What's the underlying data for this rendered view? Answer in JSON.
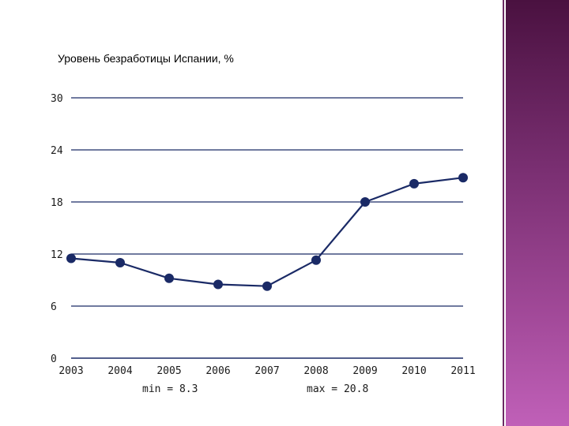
{
  "colors": {
    "line": "#1a2a66",
    "grid": "#1a2a66",
    "axis": "#1a2a66",
    "accent_bar": "#7a2f72"
  },
  "chart_data": {
    "type": "line",
    "title": "Уровень безработицы Испании, %",
    "x": [
      "2003",
      "2004",
      "2005",
      "2006",
      "2007",
      "2008",
      "2009",
      "2010",
      "2011"
    ],
    "series": [
      {
        "values": [
          11.5,
          11.0,
          9.2,
          8.5,
          8.3,
          11.3,
          18.0,
          20.1,
          20.8
        ]
      }
    ],
    "y_ticks": [
      "0",
      "6",
      "12",
      "18",
      "24",
      "30"
    ],
    "ylim": [
      0,
      30
    ],
    "grid": true,
    "legend": "none",
    "stats": {
      "min_label": "min = 8.3",
      "max_label": "max = 20.8"
    }
  }
}
